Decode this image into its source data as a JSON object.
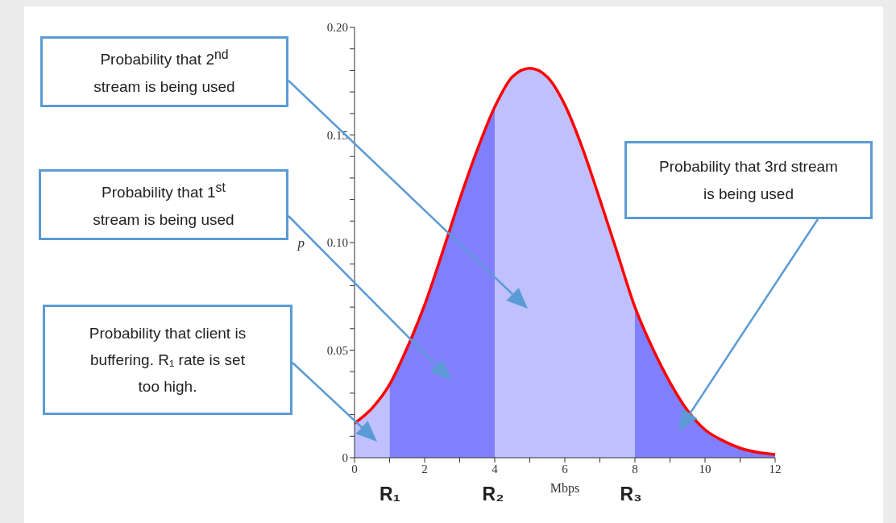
{
  "chart_data": {
    "type": "area",
    "xlabel": "Mbps",
    "ylabel": "p",
    "xlim": [
      0,
      12
    ],
    "ylim": [
      0,
      0.2
    ],
    "xticks": [
      0,
      {
        "value": 1,
        "label": null
      },
      2,
      {
        "value": 3,
        "label": null
      },
      4,
      {
        "value": 5,
        "label": null
      },
      6,
      {
        "value": 7,
        "label": null
      },
      8,
      {
        "value": 9,
        "label": null
      },
      10,
      {
        "value": 11,
        "label": null
      },
      12
    ],
    "yticks": [
      0,
      {
        "value": 0.01,
        "label": null
      },
      {
        "value": 0.02,
        "label": null
      },
      {
        "value": 0.03,
        "label": null
      },
      {
        "value": 0.04,
        "label": null
      },
      0.05,
      {
        "value": 0.06,
        "label": null
      },
      {
        "value": 0.07,
        "label": null
      },
      {
        "value": 0.08,
        "label": null
      },
      {
        "value": 0.09,
        "label": null
      },
      {
        "value": 0.1,
        "label": "0.10"
      },
      {
        "value": 0.11,
        "label": null
      },
      {
        "value": 0.12,
        "label": null
      },
      {
        "value": 0.13,
        "label": null
      },
      {
        "value": 0.14,
        "label": null
      },
      0.15,
      {
        "value": 0.16,
        "label": null
      },
      {
        "value": 0.17,
        "label": null
      },
      {
        "value": 0.18,
        "label": null
      },
      {
        "value": 0.19,
        "label": null
      },
      {
        "value": 0.2,
        "label": "0.20"
      }
    ],
    "series": [
      {
        "color": "#c0c0ff",
        "x": [
          0,
          0.5,
          1
        ],
        "values": [
          0.016,
          0.023,
          0.034
        ]
      },
      {
        "color": "#8080ff",
        "x": [
          1,
          1.5,
          2,
          2.5,
          3,
          3.5,
          4
        ],
        "values": [
          0.034,
          0.051,
          0.071,
          0.095,
          0.12,
          0.143,
          0.163
        ]
      },
      {
        "color": "#c0c0ff",
        "x": [
          4,
          4.5,
          5,
          5.5,
          6,
          6.5,
          7,
          7.5,
          8
        ],
        "values": [
          0.163,
          0.177,
          0.181,
          0.177,
          0.164,
          0.144,
          0.12,
          0.095,
          0.07
        ]
      },
      {
        "color": "#8080ff",
        "x": [
          8,
          8.5,
          9,
          9.5,
          10,
          10.5,
          11,
          11.5,
          12
        ],
        "values": [
          0.07,
          0.051,
          0.035,
          0.022,
          0.013,
          0.008,
          0.0045,
          0.0025,
          0.0015
        ]
      },
      {
        "type": "line",
        "color": "#ff0000",
        "x": [
          0,
          0.5,
          1,
          1.5,
          2,
          2.5,
          3,
          3.5,
          4,
          4.5,
          5,
          5.5,
          6,
          6.5,
          7,
          7.5,
          8,
          8.5,
          9,
          9.5,
          10,
          10.5,
          11,
          11.5,
          12
        ],
        "values": [
          0.016,
          0.023,
          0.034,
          0.051,
          0.071,
          0.095,
          0.12,
          0.143,
          0.163,
          0.177,
          0.181,
          0.177,
          0.164,
          0.144,
          0.12,
          0.095,
          0.07,
          0.051,
          0.035,
          0.022,
          0.013,
          0.008,
          0.0045,
          0.0025,
          0.0015
        ]
      }
    ],
    "annotations": [
      "Probability that 2$^{nd}$ stream is being used",
      "Probability that 1$^{st}$ stream is being used",
      "Probability that client is buffering. R₁ rate is set too high.",
      "Probability that 3rd stream is being used",
      "R₁",
      "R₂",
      "R₃"
    ]
  }
}
